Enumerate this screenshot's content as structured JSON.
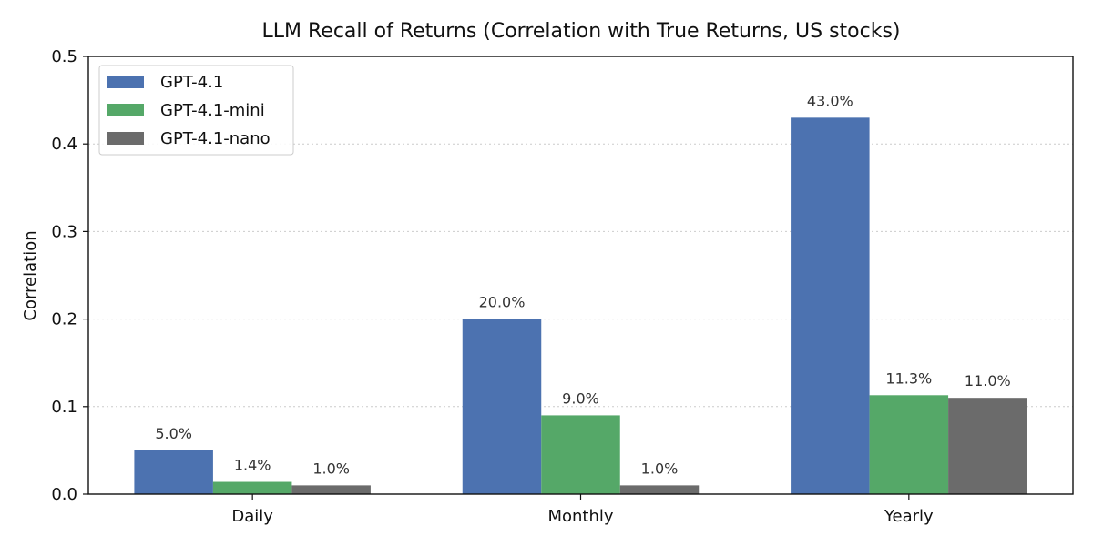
{
  "chart_data": {
    "type": "bar",
    "title": "LLM Recall of Returns (Correlation with True Returns, US stocks)",
    "xlabel": "",
    "ylabel": "Correlation",
    "categories": [
      "Daily",
      "Monthly",
      "Yearly"
    ],
    "ylim": [
      0,
      0.5
    ],
    "yticks": [
      0.0,
      0.1,
      0.2,
      0.3,
      0.4,
      0.5
    ],
    "ytick_labels": [
      "0.0",
      "0.1",
      "0.2",
      "0.3",
      "0.4",
      "0.5"
    ],
    "grid": "horizontal dotted",
    "legend_position": "top-left",
    "series": [
      {
        "name": "GPT-4.1",
        "color": "#4c72b0",
        "values": [
          0.05,
          0.2,
          0.43
        ],
        "labels": [
          "5.0%",
          "20.0%",
          "43.0%"
        ]
      },
      {
        "name": "GPT-4.1-mini",
        "color": "#55a868",
        "values": [
          0.014,
          0.09,
          0.113
        ],
        "labels": [
          "1.4%",
          "9.0%",
          "11.3%"
        ]
      },
      {
        "name": "GPT-4.1-nano",
        "color": "#6b6b6b",
        "values": [
          0.01,
          0.01,
          0.11
        ],
        "labels": [
          "1.0%",
          "1.0%",
          "11.0%"
        ]
      }
    ]
  }
}
